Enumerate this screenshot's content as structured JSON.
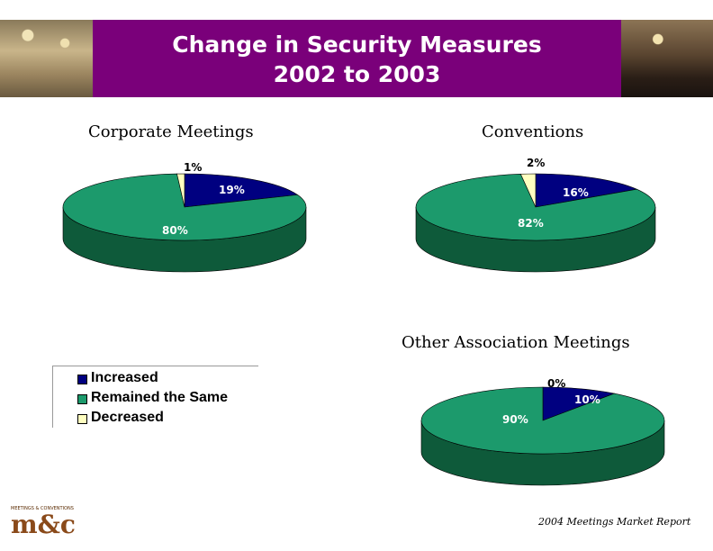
{
  "title_line1": "Change in Security Measures",
  "title_line2": "2002 to 2003",
  "colors": {
    "banner": "#7a007a",
    "increased": "#000080",
    "same": "#1c9a6c",
    "same_side": "#0e5a3a",
    "decreased": "#ffffc0"
  },
  "legend": [
    {
      "label": "Increased",
      "color": "#000080"
    },
    {
      "label": "Remained the Same",
      "color": "#1c9a6c"
    },
    {
      "label": "Decreased",
      "color": "#ffffc0"
    }
  ],
  "chart_data": [
    {
      "type": "pie",
      "title": "Corporate Meetings",
      "categories": [
        "Increased",
        "Remained the Same",
        "Decreased"
      ],
      "values": [
        19,
        80,
        1
      ],
      "labels": [
        "19%",
        "80%",
        "1%"
      ]
    },
    {
      "type": "pie",
      "title": "Conventions",
      "categories": [
        "Increased",
        "Remained the Same",
        "Decreased"
      ],
      "values": [
        16,
        82,
        2
      ],
      "labels": [
        "16%",
        "82%",
        "2%"
      ]
    },
    {
      "type": "pie",
      "title": "Other Association Meetings",
      "categories": [
        "Increased",
        "Remained the Same",
        "Decreased"
      ],
      "values": [
        10,
        90,
        0
      ],
      "labels": [
        "10%",
        "90%",
        "0%"
      ]
    }
  ],
  "logo_strip": "MEETINGS & CONVENTIONS",
  "logo_mark": "m&c",
  "footer": "2004 Meetings Market Report"
}
